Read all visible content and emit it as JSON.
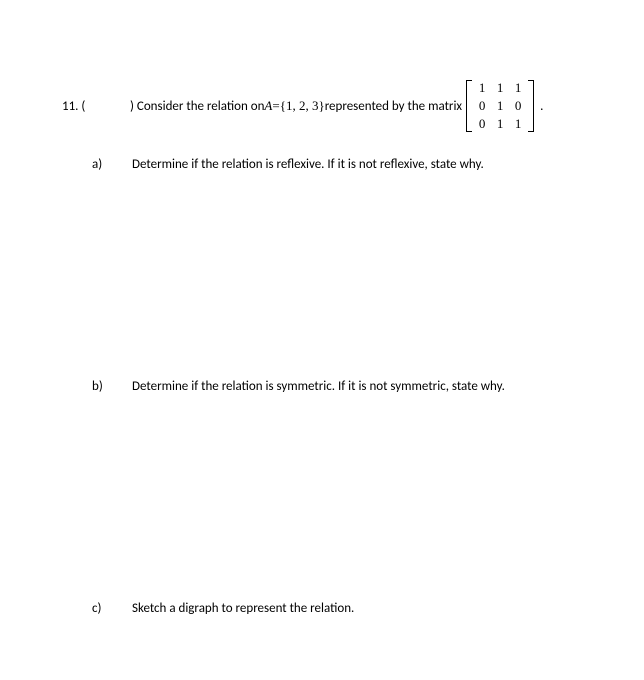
{
  "question": {
    "number": "11. (",
    "intro_paren": ") Consider the relation on ",
    "set_var": "A",
    "equals": " = ",
    "set_values": "{1, 2, 3}",
    "represented": " represented by the matrix ",
    "period": ".",
    "matrix": {
      "rows": [
        [
          "1",
          "1",
          "1"
        ],
        [
          "0",
          "1",
          "0"
        ],
        [
          "0",
          "1",
          "1"
        ]
      ]
    }
  },
  "parts": {
    "a": {
      "label": "a)",
      "text": "Determine if the relation is reflexive. If it is not reflexive, state why."
    },
    "b": {
      "label": "b)",
      "text": "Determine if the relation is symmetric. If it is not symmetric, state why."
    },
    "c": {
      "label": "c)",
      "text": "Sketch a digraph to represent the relation."
    }
  },
  "style": {
    "text_color": "#000000",
    "background": "#ffffff",
    "font_size_body": 13
  }
}
